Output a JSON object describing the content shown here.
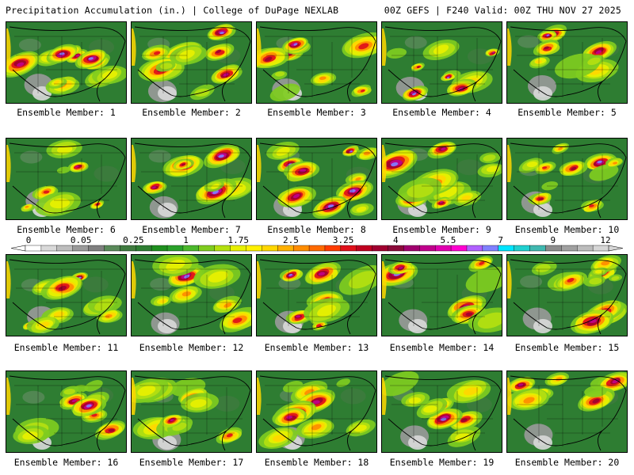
{
  "header": {
    "left": "Precipitation Accumulation (in.) | College of DuPage NEXLAB",
    "right": "00Z GEFS | F240 Valid: 00Z THU NOV 27 2025"
  },
  "colorbar": {
    "labels": [
      "0",
      "0.05",
      "0.25",
      "1",
      "1.75",
      "2.5",
      "3.25",
      "4",
      "5.5",
      "7",
      "9",
      "12"
    ],
    "colors": [
      "#ffffff",
      "#d9d9d9",
      "#bdbdbd",
      "#9a9a9a",
      "#7f7f7f",
      "#5a8a5a",
      "#3f7a3f",
      "#2e7d32",
      "#1f8f1f",
      "#2aa12a",
      "#4cb82c",
      "#7fcc1f",
      "#b4e010",
      "#e8f000",
      "#fff100",
      "#ffd700",
      "#ffb000",
      "#ff8c00",
      "#ff6a00",
      "#ff3c00",
      "#e0101a",
      "#c00020",
      "#a00030",
      "#8b0a3a",
      "#a0006e",
      "#c0008c",
      "#e000b0",
      "#ff00d0",
      "#b060ff",
      "#8080ff",
      "#00e5ff",
      "#20d0d0",
      "#40b8b0",
      "#8c8c8c",
      "#a0a0a0",
      "#bcbcbc",
      "#d6d6d6"
    ]
  },
  "members": [
    {
      "label": "Ensemble Member: 1"
    },
    {
      "label": "Ensemble Member: 2"
    },
    {
      "label": "Ensemble Member: 3"
    },
    {
      "label": "Ensemble Member: 4"
    },
    {
      "label": "Ensemble Member: 5"
    },
    {
      "label": "Ensemble Member: 6"
    },
    {
      "label": "Ensemble Member: 7"
    },
    {
      "label": "Ensemble Member: 8"
    },
    {
      "label": "Ensemble Member: 9"
    },
    {
      "label": "Ensemble Member: 10"
    },
    {
      "label": "Ensemble Member: 11"
    },
    {
      "label": "Ensemble Member: 12"
    },
    {
      "label": "Ensemble Member: 13"
    },
    {
      "label": "Ensemble Member: 14"
    },
    {
      "label": "Ensemble Member: 15"
    },
    {
      "label": "Ensemble Member: 16"
    },
    {
      "label": "Ensemble Member: 17"
    },
    {
      "label": "Ensemble Member: 18"
    },
    {
      "label": "Ensemble Member: 19"
    },
    {
      "label": "Ensemble Member: 20"
    }
  ]
}
